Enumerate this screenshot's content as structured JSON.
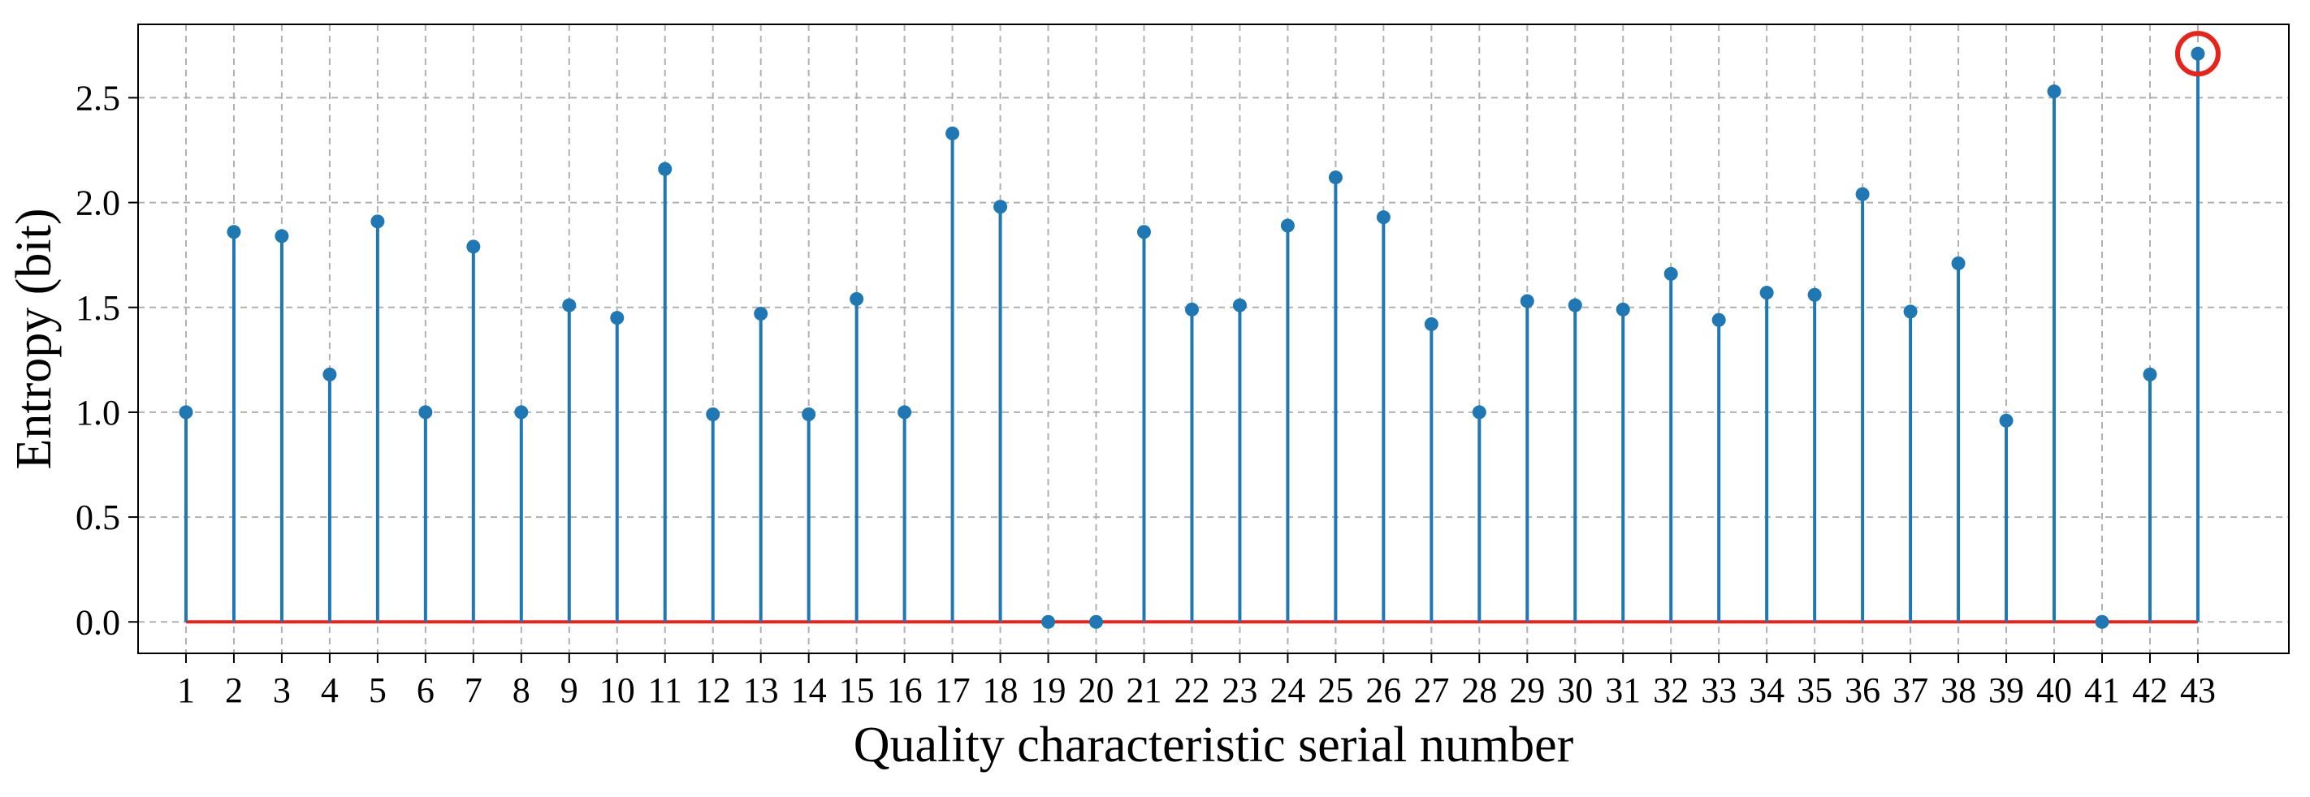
{
  "chart_data": {
    "type": "stem",
    "xlabel": "Quality characteristic serial number",
    "ylabel": "Entropy (bit)",
    "x": [
      1,
      2,
      3,
      4,
      5,
      6,
      7,
      8,
      9,
      10,
      11,
      12,
      13,
      14,
      15,
      16,
      17,
      18,
      19,
      20,
      21,
      22,
      23,
      24,
      25,
      26,
      27,
      28,
      29,
      30,
      31,
      32,
      33,
      34,
      35,
      36,
      37,
      38,
      39,
      40,
      41,
      42,
      43
    ],
    "values": [
      1.0,
      1.86,
      1.84,
      1.18,
      1.91,
      1.0,
      1.79,
      1.0,
      1.51,
      1.45,
      2.16,
      0.99,
      1.47,
      0.99,
      1.54,
      1.0,
      2.33,
      1.98,
      0.0,
      0.0,
      1.86,
      1.49,
      1.51,
      1.89,
      2.12,
      1.93,
      1.42,
      1.0,
      1.53,
      1.51,
      1.49,
      1.66,
      1.44,
      1.57,
      1.56,
      2.04,
      1.48,
      1.71,
      0.96,
      2.53,
      0.0,
      1.18,
      2.71
    ],
    "ylim": [
      -0.15,
      2.85
    ],
    "xlim": [
      0.0,
      44.9
    ],
    "yticks": [
      "0.0",
      "0.5",
      "1.0",
      "1.5",
      "2.0",
      "2.5"
    ],
    "xticks": [
      "1",
      "2",
      "3",
      "4",
      "5",
      "6",
      "7",
      "8",
      "9",
      "10",
      "11",
      "12",
      "13",
      "14",
      "15",
      "16",
      "17",
      "18",
      "19",
      "20",
      "21",
      "22",
      "23",
      "24",
      "25",
      "26",
      "27",
      "28",
      "29",
      "30",
      "31",
      "32",
      "33",
      "34",
      "35",
      "36",
      "37",
      "38",
      "39",
      "40",
      "41",
      "42",
      "43"
    ],
    "grid": true,
    "baseline": 0.0,
    "highlighted_point": 43,
    "colors": {
      "stem": "#1f77b4",
      "baseline": "#e8231a",
      "highlight": "#e8231a"
    }
  }
}
